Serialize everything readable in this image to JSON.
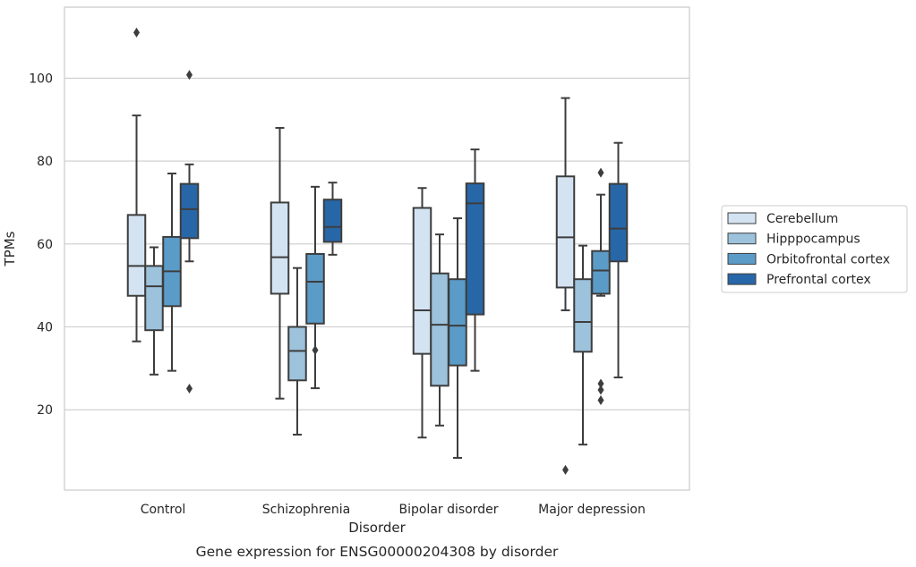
{
  "chart_data": {
    "type": "box",
    "xlabel": "Disorder",
    "ylabel": "TPMs",
    "caption": "Gene expression for ENSG00000204308 by disorder",
    "categories": [
      "Control",
      "Schizophrenia",
      "Bipolar disorder",
      "Major depression"
    ],
    "yticks": [
      20,
      40,
      60,
      80,
      100
    ],
    "ylim": [
      0,
      116
    ],
    "grid": "horizontal",
    "legend_position": "right",
    "series": [
      {
        "name": "Cerebellum",
        "color": "#d4e3f2",
        "boxes": [
          {
            "whislo": 36.5,
            "q1": 47.5,
            "med": 54.7,
            "q3": 67,
            "whishi": 91,
            "fliers": [
              111
            ]
          },
          {
            "whislo": 22.7,
            "q1": 48,
            "med": 56.8,
            "q3": 70,
            "whishi": 88,
            "fliers": []
          },
          {
            "whislo": 13.3,
            "q1": 33.5,
            "med": 44,
            "q3": 68.7,
            "whishi": 73.5,
            "fliers": []
          },
          {
            "whislo": 44,
            "q1": 49.5,
            "med": 61.6,
            "q3": 76.3,
            "whishi": 95.2,
            "fliers": [
              5.5
            ]
          }
        ]
      },
      {
        "name": "Hipppocampus",
        "color": "#9cc2dc",
        "boxes": [
          {
            "whislo": 28.5,
            "q1": 39.2,
            "med": 49.8,
            "q3": 54.7,
            "whishi": 59.2,
            "fliers": []
          },
          {
            "whislo": 14,
            "q1": 27.1,
            "med": 34.2,
            "q3": 40,
            "whishi": 54.2,
            "fliers": []
          },
          {
            "whislo": 16.2,
            "q1": 25.8,
            "med": 40.5,
            "q3": 52.9,
            "whishi": 62.3,
            "fliers": []
          },
          {
            "whislo": 11.6,
            "q1": 34,
            "med": 41.2,
            "q3": 51.5,
            "whishi": 59.6,
            "fliers": []
          }
        ]
      },
      {
        "name": "Orbitofrontal cortex",
        "color": "#5b9bc8",
        "boxes": [
          {
            "whislo": 29.4,
            "q1": 45,
            "med": 53.4,
            "q3": 61.7,
            "whishi": 77,
            "fliers": []
          },
          {
            "whislo": 25.2,
            "q1": 40.8,
            "med": 50.9,
            "q3": 57.6,
            "whishi": 73.8,
            "fliers": [
              34.4
            ]
          },
          {
            "whislo": 8.4,
            "q1": 30.7,
            "med": 40.3,
            "q3": 51.5,
            "whishi": 66.2,
            "fliers": []
          },
          {
            "whislo": 47.5,
            "q1": 48,
            "med": 53.6,
            "q3": 58.3,
            "whishi": 71.9,
            "fliers": [
              77.2,
              26.3,
              24.8,
              22.3
            ]
          }
        ]
      },
      {
        "name": "Prefrontal cortex",
        "color": "#2767a8",
        "boxes": [
          {
            "whislo": 55.8,
            "q1": 61.4,
            "med": 68.4,
            "q3": 74.5,
            "whishi": 79.2,
            "fliers": [
              100.8,
              25.1
            ]
          },
          {
            "whislo": 57.4,
            "q1": 60.5,
            "med": 64.1,
            "q3": 70.7,
            "whishi": 74.8,
            "fliers": []
          },
          {
            "whislo": 29.4,
            "q1": 43,
            "med": 69.8,
            "q3": 74.6,
            "whishi": 82.8,
            "fliers": []
          },
          {
            "whislo": 27.8,
            "q1": 55.8,
            "med": 63.7,
            "q3": 74.5,
            "whishi": 84.4,
            "fliers": []
          }
        ]
      }
    ]
  }
}
